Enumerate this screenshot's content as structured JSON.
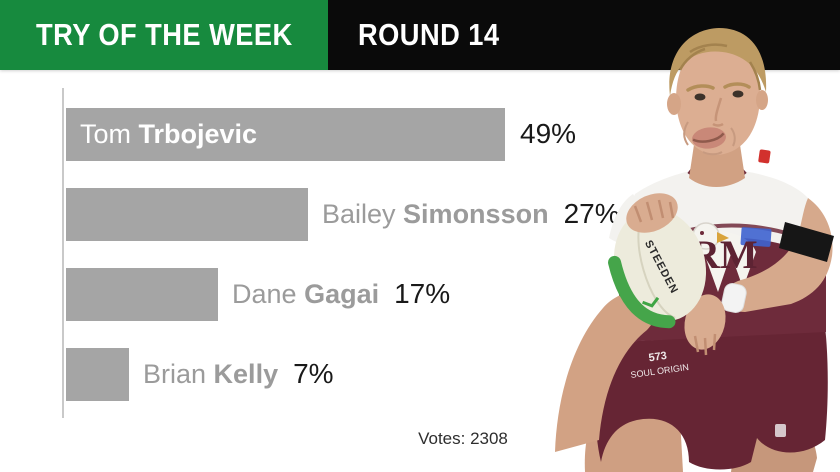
{
  "header": {
    "title": "TRY OF THE WEEK",
    "round": "ROUND 14",
    "title_bg": "#178a3e",
    "round_bg": "#0a0a0a"
  },
  "chart_data": {
    "type": "bar",
    "orientation": "horizontal",
    "categories": [
      "Tom Trbojevic",
      "Bailey Simonsson",
      "Dane Gagai",
      "Brian Kelly"
    ],
    "values": [
      49,
      27,
      17,
      7
    ],
    "unit": "%",
    "xlim": [
      0,
      49
    ],
    "grid": false,
    "legend": false,
    "bar_color": "#a5a5a5",
    "options": [
      {
        "first_name": "Tom",
        "last_name": "Trbojevic",
        "value": 49,
        "percent_label": "49%",
        "label_inside_bar": true
      },
      {
        "first_name": "Bailey",
        "last_name": "Simonsson",
        "value": 27,
        "percent_label": "27%",
        "label_inside_bar": false
      },
      {
        "first_name": "Dane",
        "last_name": "Gagai",
        "value": 17,
        "percent_label": "17%",
        "label_inside_bar": false
      },
      {
        "first_name": "Brian",
        "last_name": "Kelly",
        "value": 7,
        "percent_label": "7%",
        "label_inside_bar": false
      }
    ]
  },
  "footer": {
    "votes": "Votes: 2308"
  },
  "player": {
    "description": "cut-out photo of rugby league player in Manly Sea Eagles white and maroon jersey carrying a football",
    "ball_brand": "STEEDEN",
    "shorts_number": "573",
    "shorts_sponsor": "SOUL ORIGIN",
    "jersey_sponsor": "RM"
  },
  "colors": {
    "green": "#178a3e",
    "black": "#0a0a0a",
    "bar_gray": "#a5a5a5",
    "axis_gray": "#c9c9c9",
    "label_gray": "#9b9b9b",
    "percent_black": "#191919",
    "maroon": "#6e2b3b",
    "skin": "#d9ac90"
  }
}
